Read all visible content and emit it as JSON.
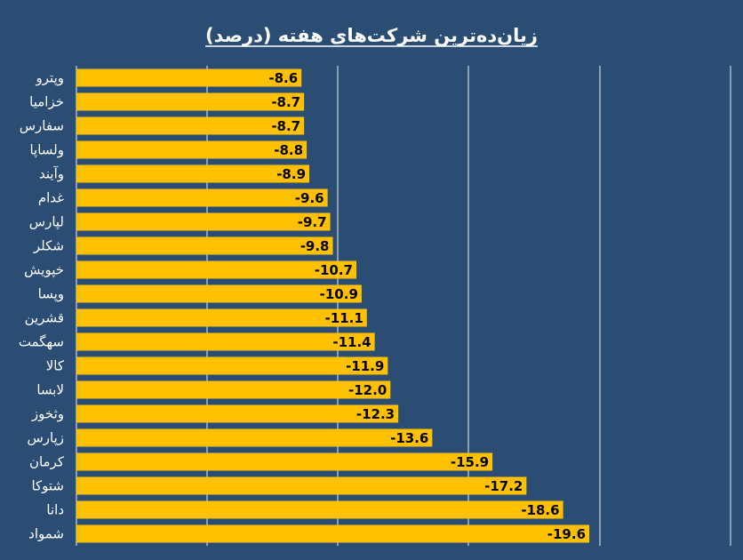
{
  "chart_data": {
    "type": "bar",
    "orientation": "horizontal",
    "title": "زیان‌ده‌ترین شرکت‌های هفته (درصد)",
    "xlabel": "",
    "ylabel": "",
    "categories": [
      "وپترو",
      "خزامیا",
      "سفارس",
      "ولساپا",
      "وآیند",
      "غدام",
      "لپارس",
      "شکلر",
      "خپویش",
      "وپسا",
      "قشرین",
      "سهگمت",
      "کالا",
      "لابسا",
      "وثخوز",
      "زپارس",
      "کرمان",
      "شتوکا",
      "دانا",
      "شمواد"
    ],
    "values": [
      -8.6,
      -8.7,
      -8.7,
      -8.8,
      -8.9,
      -9.6,
      -9.7,
      -9.8,
      -10.7,
      -10.9,
      -11.1,
      -11.4,
      -11.9,
      -12.0,
      -12.3,
      -13.6,
      -15.9,
      -17.2,
      -18.6,
      -19.6
    ],
    "value_labels": [
      "-8.6",
      "-8.7",
      "-8.7",
      "-8.8",
      "-8.9",
      "-9.6",
      "-9.7",
      "-9.8",
      "-10.7",
      "-10.9",
      "-11.1",
      "-11.4",
      "-11.9",
      "-12.0",
      "-12.3",
      "-13.6",
      "-15.9",
      "-17.2",
      "-18.6",
      "-19.6"
    ],
    "xlim": [
      0,
      -25
    ],
    "grid": true,
    "legend": "none",
    "colors": {
      "background": "#2b4d74",
      "bar": "#ffc000",
      "grid": "#e8eef5",
      "text": "#ffffff",
      "value_text": "#000000"
    }
  }
}
